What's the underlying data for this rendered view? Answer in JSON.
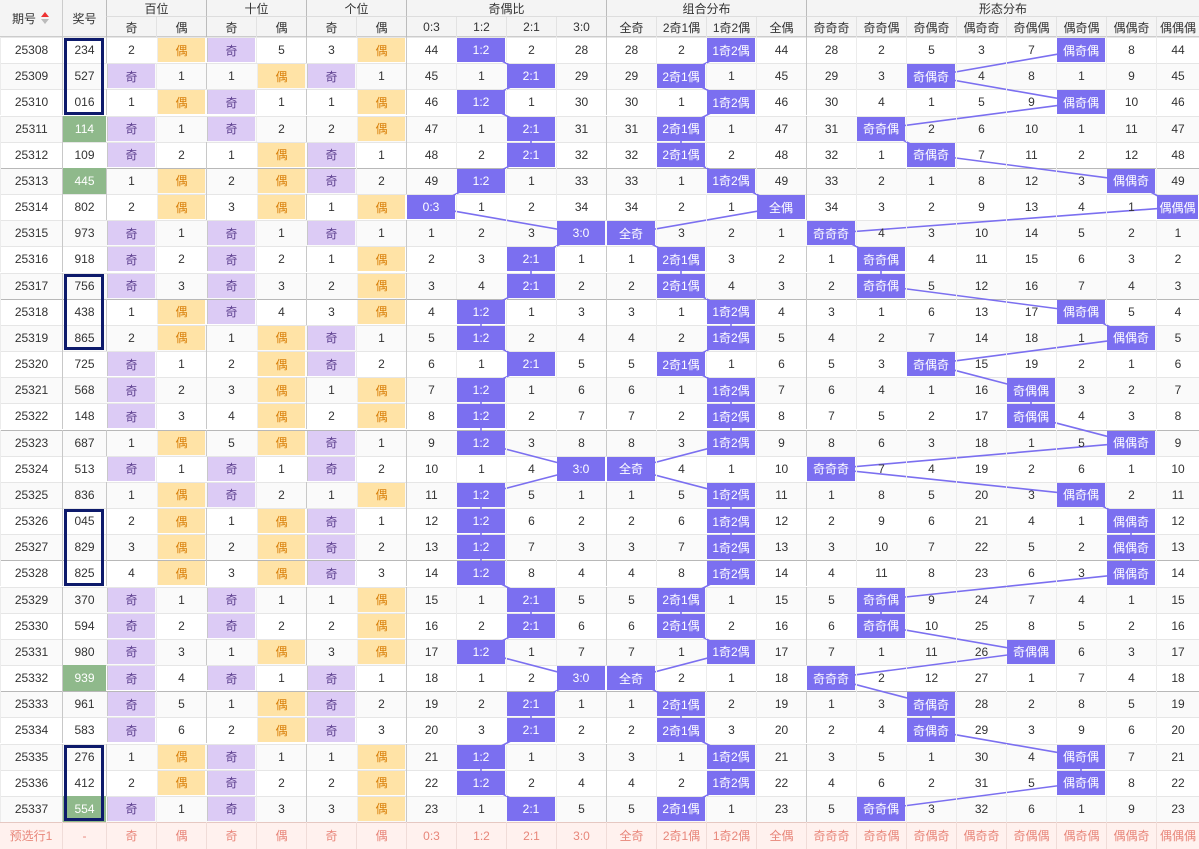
{
  "header": {
    "period": "期号",
    "number": "奖号",
    "groups": [
      "百位",
      "十位",
      "个位",
      "奇偶比",
      "组合分布",
      "形态分布"
    ],
    "columns": [
      "奇",
      "偶",
      "奇",
      "偶",
      "奇",
      "偶",
      "0:3",
      "1:2",
      "2:1",
      "3:0",
      "全奇",
      "2奇1偶",
      "1奇2偶",
      "全偶",
      "奇奇奇",
      "奇奇偶",
      "奇偶奇",
      "偶奇奇",
      "奇偶偶",
      "偶奇偶",
      "偶偶奇",
      "偶偶偶"
    ]
  },
  "rows": [
    [
      "25308",
      "234",
      "2",
      "偶",
      "奇",
      "5",
      "3",
      "偶",
      "44",
      "1:2",
      "2",
      "28",
      "28",
      "2",
      "1奇2偶",
      "44",
      "28",
      "2",
      "5",
      "3",
      "7",
      "偶奇偶",
      "8",
      "44"
    ],
    [
      "25309",
      "527",
      "奇",
      "1",
      "1",
      "偶",
      "奇",
      "1",
      "45",
      "1",
      "2:1",
      "29",
      "29",
      "2奇1偶",
      "1",
      "45",
      "29",
      "3",
      "奇偶奇",
      "4",
      "8",
      "1",
      "9",
      "45"
    ],
    [
      "25310",
      "016",
      "1",
      "偶",
      "奇",
      "1",
      "1",
      "偶",
      "46",
      "1:2",
      "1",
      "30",
      "30",
      "1",
      "1奇2偶",
      "46",
      "30",
      "4",
      "1",
      "5",
      "9",
      "偶奇偶",
      "10",
      "46"
    ],
    [
      "25311",
      "114",
      "奇",
      "1",
      "奇",
      "2",
      "2",
      "偶",
      "47",
      "1",
      "2:1",
      "31",
      "31",
      "2奇1偶",
      "1",
      "47",
      "31",
      "奇奇偶",
      "2",
      "6",
      "10",
      "1",
      "11",
      "47"
    ],
    [
      "25312",
      "109",
      "奇",
      "2",
      "1",
      "偶",
      "奇",
      "1",
      "48",
      "2",
      "2:1",
      "32",
      "32",
      "2奇1偶",
      "2",
      "48",
      "32",
      "1",
      "奇偶奇",
      "7",
      "11",
      "2",
      "12",
      "48"
    ],
    [
      "25313",
      "445",
      "1",
      "偶",
      "2",
      "偶",
      "奇",
      "2",
      "49",
      "1:2",
      "1",
      "33",
      "33",
      "1",
      "1奇2偶",
      "49",
      "33",
      "2",
      "1",
      "8",
      "12",
      "3",
      "偶偶奇",
      "49"
    ],
    [
      "25314",
      "802",
      "2",
      "偶",
      "3",
      "偶",
      "1",
      "偶",
      "0:3",
      "1",
      "2",
      "34",
      "34",
      "2",
      "1",
      "全偶",
      "34",
      "3",
      "2",
      "9",
      "13",
      "4",
      "1",
      "偶偶偶"
    ],
    [
      "25315",
      "973",
      "奇",
      "1",
      "奇",
      "1",
      "奇",
      "1",
      "1",
      "2",
      "3",
      "3:0",
      "全奇",
      "3",
      "2",
      "1",
      "奇奇奇",
      "4",
      "3",
      "10",
      "14",
      "5",
      "2",
      "1"
    ],
    [
      "25316",
      "918",
      "奇",
      "2",
      "奇",
      "2",
      "1",
      "偶",
      "2",
      "3",
      "2:1",
      "1",
      "1",
      "2奇1偶",
      "3",
      "2",
      "1",
      "奇奇偶",
      "4",
      "11",
      "15",
      "6",
      "3",
      "2"
    ],
    [
      "25317",
      "756",
      "奇",
      "3",
      "奇",
      "3",
      "2",
      "偶",
      "3",
      "4",
      "2:1",
      "2",
      "2",
      "2奇1偶",
      "4",
      "3",
      "2",
      "奇奇偶",
      "5",
      "12",
      "16",
      "7",
      "4",
      "3"
    ],
    [
      "25318",
      "438",
      "1",
      "偶",
      "奇",
      "4",
      "3",
      "偶",
      "4",
      "1:2",
      "1",
      "3",
      "3",
      "1",
      "1奇2偶",
      "4",
      "3",
      "1",
      "6",
      "13",
      "17",
      "偶奇偶",
      "5",
      "4"
    ],
    [
      "25319",
      "865",
      "2",
      "偶",
      "1",
      "偶",
      "奇",
      "1",
      "5",
      "1:2",
      "2",
      "4",
      "4",
      "2",
      "1奇2偶",
      "5",
      "4",
      "2",
      "7",
      "14",
      "18",
      "1",
      "偶偶奇",
      "5"
    ],
    [
      "25320",
      "725",
      "奇",
      "1",
      "2",
      "偶",
      "奇",
      "2",
      "6",
      "1",
      "2:1",
      "5",
      "5",
      "2奇1偶",
      "1",
      "6",
      "5",
      "3",
      "奇偶奇",
      "15",
      "19",
      "2",
      "1",
      "6"
    ],
    [
      "25321",
      "568",
      "奇",
      "2",
      "3",
      "偶",
      "1",
      "偶",
      "7",
      "1:2",
      "1",
      "6",
      "6",
      "1",
      "1奇2偶",
      "7",
      "6",
      "4",
      "1",
      "16",
      "奇偶偶",
      "3",
      "2",
      "7"
    ],
    [
      "25322",
      "148",
      "奇",
      "3",
      "4",
      "偶",
      "2",
      "偶",
      "8",
      "1:2",
      "2",
      "7",
      "7",
      "2",
      "1奇2偶",
      "8",
      "7",
      "5",
      "2",
      "17",
      "奇偶偶",
      "4",
      "3",
      "8"
    ],
    [
      "25323",
      "687",
      "1",
      "偶",
      "5",
      "偶",
      "奇",
      "1",
      "9",
      "1:2",
      "3",
      "8",
      "8",
      "3",
      "1奇2偶",
      "9",
      "8",
      "6",
      "3",
      "18",
      "1",
      "5",
      "偶偶奇",
      "9"
    ],
    [
      "25324",
      "513",
      "奇",
      "1",
      "奇",
      "1",
      "奇",
      "2",
      "10",
      "1",
      "4",
      "3:0",
      "全奇",
      "4",
      "1",
      "10",
      "奇奇奇",
      "7",
      "4",
      "19",
      "2",
      "6",
      "1",
      "10"
    ],
    [
      "25325",
      "836",
      "1",
      "偶",
      "奇",
      "2",
      "1",
      "偶",
      "11",
      "1:2",
      "5",
      "1",
      "1",
      "5",
      "1奇2偶",
      "11",
      "1",
      "8",
      "5",
      "20",
      "3",
      "偶奇偶",
      "2",
      "11"
    ],
    [
      "25326",
      "045",
      "2",
      "偶",
      "1",
      "偶",
      "奇",
      "1",
      "12",
      "1:2",
      "6",
      "2",
      "2",
      "6",
      "1奇2偶",
      "12",
      "2",
      "9",
      "6",
      "21",
      "4",
      "1",
      "偶偶奇",
      "12"
    ],
    [
      "25327",
      "829",
      "3",
      "偶",
      "2",
      "偶",
      "奇",
      "2",
      "13",
      "1:2",
      "7",
      "3",
      "3",
      "7",
      "1奇2偶",
      "13",
      "3",
      "10",
      "7",
      "22",
      "5",
      "2",
      "偶偶奇",
      "13"
    ],
    [
      "25328",
      "825",
      "4",
      "偶",
      "3",
      "偶",
      "奇",
      "3",
      "14",
      "1:2",
      "8",
      "4",
      "4",
      "8",
      "1奇2偶",
      "14",
      "4",
      "11",
      "8",
      "23",
      "6",
      "3",
      "偶偶奇",
      "14"
    ],
    [
      "25329",
      "370",
      "奇",
      "1",
      "奇",
      "1",
      "1",
      "偶",
      "15",
      "1",
      "2:1",
      "5",
      "5",
      "2奇1偶",
      "1",
      "15",
      "5",
      "奇奇偶",
      "9",
      "24",
      "7",
      "4",
      "1",
      "15"
    ],
    [
      "25330",
      "594",
      "奇",
      "2",
      "奇",
      "2",
      "2",
      "偶",
      "16",
      "2",
      "2:1",
      "6",
      "6",
      "2奇1偶",
      "2",
      "16",
      "6",
      "奇奇偶",
      "10",
      "25",
      "8",
      "5",
      "2",
      "16"
    ],
    [
      "25331",
      "980",
      "奇",
      "3",
      "1",
      "偶",
      "3",
      "偶",
      "17",
      "1:2",
      "1",
      "7",
      "7",
      "1",
      "1奇2偶",
      "17",
      "7",
      "1",
      "11",
      "26",
      "奇偶偶",
      "6",
      "3",
      "17"
    ],
    [
      "25332",
      "939",
      "奇",
      "4",
      "奇",
      "1",
      "奇",
      "1",
      "18",
      "1",
      "2",
      "3:0",
      "全奇",
      "2",
      "1",
      "18",
      "奇奇奇",
      "2",
      "12",
      "27",
      "1",
      "7",
      "4",
      "18"
    ],
    [
      "25333",
      "961",
      "奇",
      "5",
      "1",
      "偶",
      "奇",
      "2",
      "19",
      "2",
      "2:1",
      "1",
      "1",
      "2奇1偶",
      "2",
      "19",
      "1",
      "3",
      "奇偶奇",
      "28",
      "2",
      "8",
      "5",
      "19"
    ],
    [
      "25334",
      "583",
      "奇",
      "6",
      "2",
      "偶",
      "奇",
      "3",
      "20",
      "3",
      "2:1",
      "2",
      "2",
      "2奇1偶",
      "3",
      "20",
      "2",
      "4",
      "奇偶奇",
      "29",
      "3",
      "9",
      "6",
      "20"
    ],
    [
      "25335",
      "276",
      "1",
      "偶",
      "奇",
      "1",
      "1",
      "偶",
      "21",
      "1:2",
      "1",
      "3",
      "3",
      "1",
      "1奇2偶",
      "21",
      "3",
      "5",
      "1",
      "30",
      "4",
      "偶奇偶",
      "7",
      "21"
    ],
    [
      "25336",
      "412",
      "2",
      "偶",
      "奇",
      "2",
      "2",
      "偶",
      "22",
      "1:2",
      "2",
      "4",
      "4",
      "2",
      "1奇2偶",
      "22",
      "4",
      "6",
      "2",
      "31",
      "5",
      "偶奇偶",
      "8",
      "22"
    ],
    [
      "25337",
      "554",
      "奇",
      "1",
      "奇",
      "3",
      "3",
      "偶",
      "23",
      "1",
      "2:1",
      "5",
      "5",
      "2奇1偶",
      "1",
      "23",
      "5",
      "奇奇偶",
      "3",
      "32",
      "6",
      "1",
      "9",
      "23"
    ]
  ],
  "footer": [
    "预选行1",
    "-",
    "奇",
    "偶",
    "奇",
    "偶",
    "奇",
    "偶",
    "0:3",
    "1:2",
    "2:1",
    "3:0",
    "全奇",
    "2奇1偶",
    "1奇2偶",
    "全偶",
    "奇奇奇",
    "奇奇偶",
    "奇偶奇",
    "偶奇奇",
    "奇偶偶",
    "偶奇偶",
    "偶偶奇",
    "偶偶偶"
  ]
}
